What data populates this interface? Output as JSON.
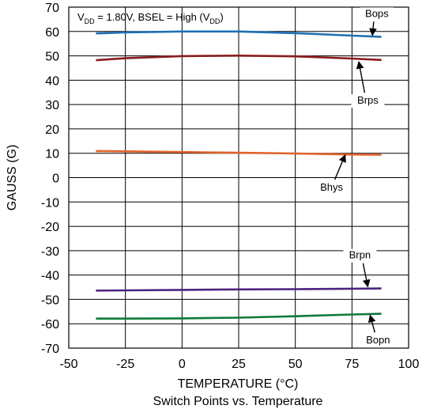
{
  "chart_data": {
    "type": "line",
    "caption": "Switch Points vs. Temperature",
    "xlabel": "TEMPERATURE (°C)",
    "ylabel": "GAUSS (G)",
    "xlim": [
      -50,
      100
    ],
    "ylim": [
      -70,
      70
    ],
    "xticks": [
      -50,
      -25,
      0,
      25,
      50,
      75,
      100
    ],
    "yticks": [
      70,
      60,
      50,
      40,
      30,
      20,
      10,
      0,
      -10,
      -20,
      -30,
      -40,
      -50,
      -60,
      -70
    ],
    "grid": true,
    "condition": {
      "v_prefix": "V",
      "v_sub": "DD",
      "middle": " = 1.80V, BSEL = High (V",
      "v_sub2": "DD",
      "suffix": ")"
    },
    "series": [
      {
        "name": "Bops",
        "color": "#1f6fb5",
        "x": [
          -38,
          -25,
          0,
          25,
          50,
          75,
          88
        ],
        "values": [
          59.2,
          59.6,
          60.0,
          60.0,
          59.3,
          58.3,
          57.8
        ]
      },
      {
        "name": "Brps",
        "color": "#8a1c1c",
        "x": [
          -38,
          -25,
          0,
          25,
          50,
          75,
          88
        ],
        "values": [
          48.2,
          49.0,
          49.9,
          50.1,
          49.8,
          48.9,
          48.3
        ]
      },
      {
        "name": "Bhys",
        "color": "#e0622b",
        "x": [
          -38,
          -25,
          0,
          25,
          50,
          75,
          88
        ],
        "values": [
          10.9,
          10.8,
          10.5,
          10.2,
          9.9,
          9.5,
          9.4
        ]
      },
      {
        "name": "Brpn",
        "color": "#4b2580",
        "x": [
          -38,
          -25,
          0,
          25,
          50,
          75,
          88
        ],
        "values": [
          -46.4,
          -46.3,
          -46.1,
          -45.9,
          -45.8,
          -45.6,
          -45.5
        ]
      },
      {
        "name": "Bopn",
        "color": "#0c7a3b",
        "x": [
          -38,
          -25,
          0,
          25,
          50,
          75,
          88
        ],
        "values": [
          -57.9,
          -57.9,
          -57.8,
          -57.5,
          -56.9,
          -56.2,
          -55.9
        ]
      }
    ]
  }
}
